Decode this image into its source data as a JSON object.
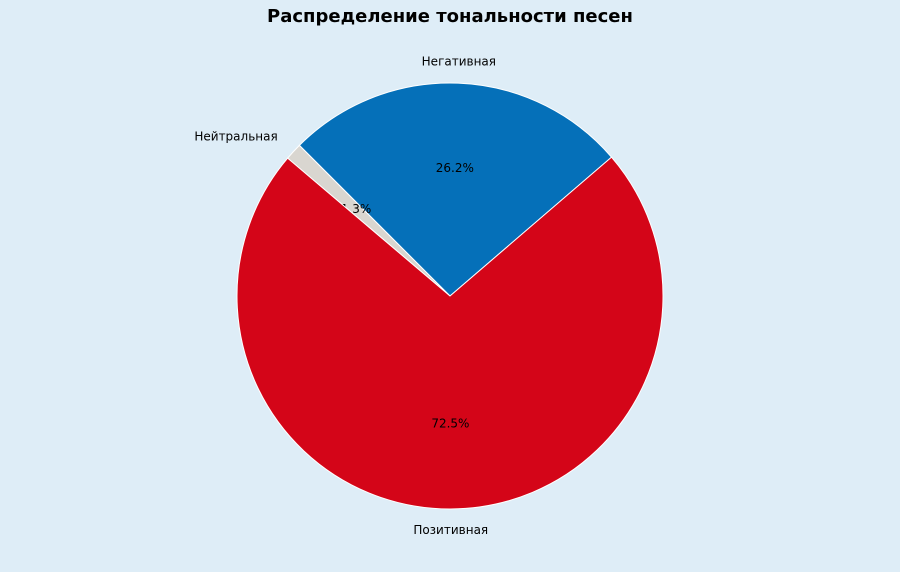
{
  "chart_data": {
    "type": "pie",
    "title": "Распределение тональности песен",
    "categories": [
      "Негативная",
      "Нейтральная",
      "Позитивная"
    ],
    "values": [
      26.2,
      1.3,
      72.5
    ],
    "value_labels": [
      "26.2%",
      "1.3%",
      "72.5%"
    ],
    "colors": [
      "#0570b9",
      "#d9d6d0",
      "#d40518"
    ]
  }
}
